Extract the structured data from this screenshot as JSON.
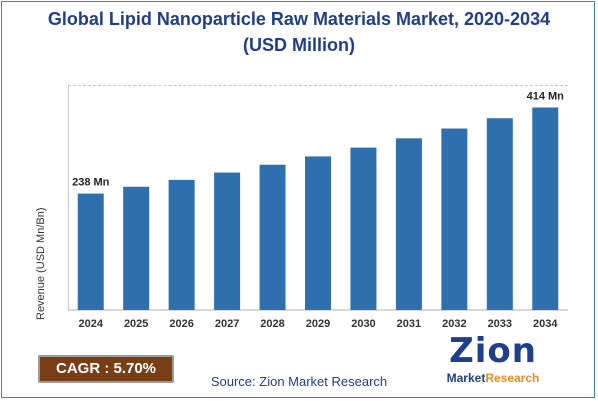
{
  "title_line1": "Global Lipid Nanoparticle Raw Materials Market, 2020-2034",
  "title_line2": "(USD Million)",
  "cagr_label": "CAGR : 5.70%",
  "source": "Source: Zion Market Research",
  "logo": {
    "main": "Zion",
    "sub_a": "Market",
    "sub_b": "Research"
  },
  "colors": {
    "bar": "#2e6fad",
    "title": "#1f3f8a",
    "cagr_bg": "#7a3e16",
    "logo_accent": "#f08a1c"
  },
  "chart_data": {
    "type": "bar",
    "title": "Global Lipid Nanoparticle Raw Materials Market, 2020-2034 (USD Million)",
    "xlabel": "",
    "ylabel": "Revenue (USD Mn/Bn)",
    "categories": [
      "2024",
      "2025",
      "2026",
      "2027",
      "2028",
      "2029",
      "2030",
      "2031",
      "2032",
      "2033",
      "2034"
    ],
    "values": [
      238,
      252,
      266,
      281,
      297,
      314,
      332,
      351,
      371,
      392,
      414
    ],
    "data_labels": {
      "2024": "238 Mn",
      "2034": "414 Mn"
    },
    "ylim": [
      0,
      460
    ],
    "grid": false,
    "legend": "none"
  }
}
